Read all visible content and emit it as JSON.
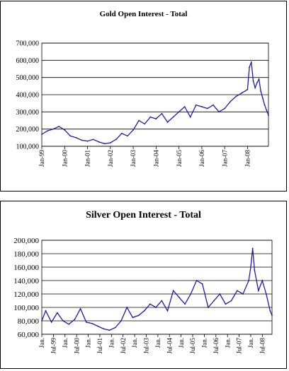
{
  "chart_data": [
    {
      "type": "line",
      "title": "Gold Open Interest - Total",
      "xlabel": "",
      "ylabel": "",
      "ylim": [
        100000,
        700000
      ],
      "yticks": [
        100000,
        200000,
        300000,
        400000,
        500000,
        600000,
        700000
      ],
      "ytick_labels": [
        "100,000",
        "200,000",
        "300,000",
        "400,000",
        "500,000",
        "600,000",
        "700,000"
      ],
      "xlim": [
        "1999-01",
        "2008-12"
      ],
      "xtick_labels": [
        "Jan-99",
        "Jan-00",
        "Jan-01",
        "Jan-02",
        "Jan-03",
        "Jan-04",
        "Jan-05",
        "Jan-06",
        "Jan-07",
        "Jan-08"
      ],
      "xtick_positions": [
        "1999-01",
        "2000-01",
        "2001-01",
        "2002-01",
        "2003-01",
        "2004-01",
        "2005-01",
        "2006-01",
        "2007-01",
        "2008-01"
      ],
      "grid": true,
      "line_color": "#1f1f8f",
      "series": [
        {
          "x": [
            "1999-01",
            "1999-04",
            "1999-07",
            "1999-10",
            "2000-01",
            "2000-04",
            "2000-07",
            "2000-10",
            "2001-01",
            "2001-04",
            "2001-07",
            "2001-10",
            "2002-01",
            "2002-04",
            "2002-07",
            "2002-10",
            "2003-01",
            "2003-04",
            "2003-07",
            "2003-10",
            "2004-01",
            "2004-04",
            "2004-07",
            "2004-10",
            "2005-01",
            "2005-04",
            "2005-07",
            "2005-10",
            "2006-01",
            "2006-04",
            "2006-07",
            "2006-10",
            "2007-01",
            "2007-04",
            "2007-07",
            "2007-10",
            "2008-01",
            "2008-02",
            "2008-03",
            "2008-04",
            "2008-05",
            "2008-06",
            "2008-07",
            "2008-08",
            "2008-09",
            "2008-10",
            "2008-11",
            "2008-12"
          ],
          "values": [
            170000,
            190000,
            200000,
            215000,
            195000,
            160000,
            150000,
            135000,
            130000,
            140000,
            125000,
            115000,
            120000,
            140000,
            175000,
            160000,
            195000,
            250000,
            230000,
            270000,
            260000,
            290000,
            240000,
            270000,
            300000,
            330000,
            270000,
            340000,
            330000,
            320000,
            340000,
            300000,
            320000,
            360000,
            390000,
            410000,
            430000,
            560000,
            590000,
            480000,
            440000,
            470000,
            490000,
            420000,
            380000,
            340000,
            310000,
            280000
          ]
        }
      ]
    },
    {
      "type": "line",
      "title": "Silver Open Interest - Total",
      "xlabel": "",
      "ylabel": "",
      "ylim": [
        60000,
        200000
      ],
      "yticks": [
        60000,
        80000,
        100000,
        120000,
        140000,
        160000,
        180000,
        200000
      ],
      "ytick_labels": [
        "60,000",
        "80,000",
        "100,000",
        "120,000",
        "140,000",
        "160,000",
        "180,000",
        "200,000"
      ],
      "xlim": [
        "1999-01",
        "2008-12"
      ],
      "xtick_labels": [
        "Jan.",
        "Jul-99",
        "Jan.",
        "Jul-00",
        "Jan.",
        "Jul-01",
        "Jan.",
        "Jul-02",
        "Jan.",
        "Jul-03",
        "Jan.",
        "Jul-04",
        "Jan.",
        "Jul-05",
        "Jan.",
        "Jul-06",
        "Jan.",
        "Jul-07",
        "Jan.",
        "Jul-08"
      ],
      "xtick_positions": [
        "1999-01",
        "1999-07",
        "2000-01",
        "2000-07",
        "2001-01",
        "2001-07",
        "2002-01",
        "2002-07",
        "2003-01",
        "2003-07",
        "2004-01",
        "2004-07",
        "2005-01",
        "2005-07",
        "2006-01",
        "2006-07",
        "2007-01",
        "2007-07",
        "2008-01",
        "2008-07"
      ],
      "grid": true,
      "line_color": "#1f1f8f",
      "series": [
        {
          "x": [
            "1999-01",
            "1999-03",
            "1999-06",
            "1999-09",
            "1999-12",
            "2000-03",
            "2000-06",
            "2000-09",
            "2000-12",
            "2001-03",
            "2001-06",
            "2001-09",
            "2001-12",
            "2002-03",
            "2002-06",
            "2002-09",
            "2002-12",
            "2003-03",
            "2003-06",
            "2003-09",
            "2003-12",
            "2004-03",
            "2004-06",
            "2004-09",
            "2004-12",
            "2005-03",
            "2005-06",
            "2005-09",
            "2005-12",
            "2006-03",
            "2006-06",
            "2006-09",
            "2006-12",
            "2007-03",
            "2007-06",
            "2007-09",
            "2007-12",
            "2008-01",
            "2008-02",
            "2008-03",
            "2008-05",
            "2008-07",
            "2008-09",
            "2008-11",
            "2008-12"
          ],
          "values": [
            80000,
            95000,
            78000,
            92000,
            80000,
            75000,
            82000,
            98000,
            78000,
            76000,
            72000,
            68000,
            66000,
            70000,
            80000,
            100000,
            85000,
            88000,
            95000,
            105000,
            100000,
            110000,
            95000,
            125000,
            115000,
            105000,
            120000,
            140000,
            135000,
            100000,
            110000,
            120000,
            105000,
            110000,
            125000,
            120000,
            140000,
            160000,
            188000,
            155000,
            125000,
            140000,
            120000,
            95000,
            88000
          ]
        }
      ]
    }
  ]
}
